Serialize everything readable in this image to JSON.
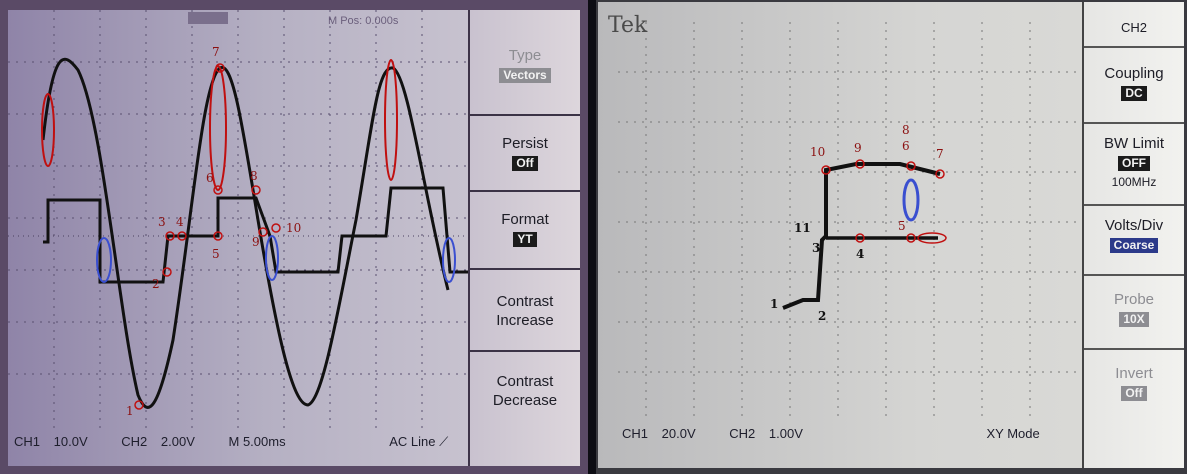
{
  "left_scope": {
    "header_text": "M Pos: 0.000s",
    "menu": [
      {
        "label": "Type",
        "value": "Vectors",
        "faded": true
      },
      {
        "label": "Persist",
        "value": "Off"
      },
      {
        "label": "Format",
        "value": "YT"
      },
      {
        "label": "Contrast Increase",
        "value": ""
      },
      {
        "label": "Contrast Decrease",
        "value": ""
      }
    ],
    "status": {
      "ch1": "CH1",
      "ch1_scale": "10.0V",
      "ch2": "CH2",
      "ch2_scale": "2.00V",
      "timebase": "M 5.00ms",
      "trigger": "AC Line"
    },
    "point_labels": [
      "1",
      "2",
      "3",
      "4",
      "5",
      "6",
      "7",
      "8",
      "9",
      "10"
    ],
    "colors": {
      "trace": "#111111",
      "red_marker": "#c01010",
      "blue_marker": "#3a4fd0"
    }
  },
  "right_scope": {
    "header": {
      "brand": "Tek",
      "channel": "CH2"
    },
    "menu": [
      {
        "label": "Coupling",
        "value": "DC"
      },
      {
        "label": "BW Limit",
        "value": "OFF",
        "extra": "100MHz"
      },
      {
        "label": "Volts/Div",
        "value": "Coarse"
      },
      {
        "label": "Probe",
        "value": "10X",
        "faded": true
      },
      {
        "label": "Invert",
        "value": "Off",
        "faded": true
      }
    ],
    "status": {
      "ch1": "CH1",
      "ch1_scale": "20.0V",
      "ch2": "CH2",
      "ch2_scale": "1.00V",
      "mode": "XY Mode"
    },
    "point_labels": [
      "1",
      "2",
      "3",
      "4",
      "5",
      "6",
      "7",
      "8",
      "9",
      "10",
      "11"
    ]
  }
}
